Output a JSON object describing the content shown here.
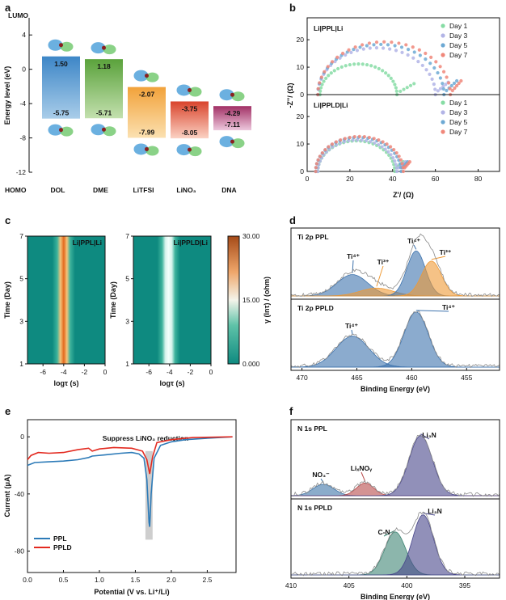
{
  "colors": {
    "day1": "#86dca4",
    "day3": "#b2b4e6",
    "day5": "#6da9d4",
    "day7": "#f0877a",
    "ppl": "#2d7bb8",
    "ppld": "#e32a20",
    "ti4": "#3e73ad",
    "ti3": "#ef9a36",
    "no3": "#3e74a8",
    "lixnoy": "#b84b4b",
    "cn": "#3f8574",
    "li3n": "#48468b",
    "heat_low": "#0e8a80",
    "heat_high": "#e46a1e"
  },
  "chart_data": [
    {
      "panel": "a",
      "type": "bar",
      "title": "LUMO",
      "bottom_label": "HOMO",
      "ylabel": "Energy level (eV)",
      "ylim": [
        -12,
        6
      ],
      "yticks": [
        -12,
        -8,
        -4,
        0,
        4
      ],
      "categories": [
        "DOL",
        "DME",
        "LiTFSI",
        "LiNO₃",
        "DNA"
      ],
      "lumo": [
        1.5,
        1.18,
        -2.07,
        -3.75,
        -4.29
      ],
      "homo": [
        -5.75,
        -5.71,
        -7.99,
        -8.05,
        -7.11
      ],
      "lumo_labels": [
        "1.50",
        "1.18",
        "-2.07",
        "-3.75",
        "-4.29"
      ],
      "homo_labels": [
        "-5.75",
        "-5.71",
        "-7.99",
        "-8.05",
        "-7.11"
      ],
      "bar_colors": [
        [
          "#3d86c7",
          "#a9cde9"
        ],
        [
          "#5aa23b",
          "#c3e0ae"
        ],
        [
          "#f2a23a",
          "#fbe1b1"
        ],
        [
          "#d9442c",
          "#fbd2c4"
        ],
        [
          "#a23065",
          "#edc7dc"
        ]
      ]
    },
    {
      "panel": "b",
      "type": "scatter",
      "xlabel": "Z'/ (Ω)",
      "ylabel": "-Z''/ (Ω)",
      "xlim": [
        0,
        90
      ],
      "xticks": [
        0,
        20,
        40,
        60,
        80
      ],
      "ylim": [
        0,
        28
      ],
      "yticks": [
        0,
        10,
        20
      ],
      "legend": [
        "Day 1",
        "Day 3",
        "Day 5",
        "Day 7"
      ],
      "subplots": [
        {
          "label": "Li|PPL|Li",
          "series": [
            {
              "name": "Day 1",
              "r0": 6,
              "r1": 42,
              "tail": [
                [
                  42,
                  0.5
                ],
                [
                  50,
                  4
                ]
              ]
            },
            {
              "name": "Day 3",
              "r0": 5,
              "r1": 60,
              "tail": [
                [
                  60,
                  0.6
                ],
                [
                  66,
                  4.5
                ]
              ]
            },
            {
              "name": "Day 5",
              "r0": 5,
              "r1": 64,
              "tail": [
                [
                  64,
                  0.6
                ],
                [
                  70,
                  5
                ]
              ]
            },
            {
              "name": "Day 7",
              "r0": 5,
              "r1": 67,
              "tail": [
                [
                  67,
                  0.6
                ],
                [
                  72,
                  5
                ]
              ]
            }
          ]
        },
        {
          "label": "Li|PPLD|Li",
          "series": [
            {
              "name": "Day 1",
              "r0": 5,
              "r1": 41,
              "tail": [
                [
                  41,
                  0.8
                ],
                [
                  45,
                  3.5
                ]
              ]
            },
            {
              "name": "Day 3",
              "r0": 5,
              "r1": 42,
              "tail": [
                [
                  42,
                  0.8
                ],
                [
                  46,
                  3.5
                ]
              ]
            },
            {
              "name": "Day 5",
              "r0": 4,
              "r1": 44,
              "tail": [
                [
                  44,
                  0.8
                ],
                [
                  47,
                  3.5
                ]
              ]
            },
            {
              "name": "Day 7",
              "r0": 4,
              "r1": 45,
              "tail": [
                [
                  45,
                  0.8
                ],
                [
                  48,
                  3.5
                ]
              ]
            }
          ]
        }
      ]
    },
    {
      "panel": "c",
      "type": "heatmap",
      "xlabel": "logτ (s)",
      "ylabel": "Time (Day)",
      "xlim": [
        -7.5,
        0
      ],
      "xticks": [
        -6,
        -4,
        -2,
        0
      ],
      "ylim": [
        1,
        7
      ],
      "yticks": [
        1,
        3,
        5,
        7
      ],
      "colorbar_label": "γ (lnτ) / (ohm)",
      "colorbar_ticks": [
        "0.000",
        "15.00",
        "30.00"
      ],
      "maps": [
        {
          "label": "Li|PPL|Li",
          "peak_logtau": -4.0,
          "peak_value": 30
        },
        {
          "label": "Li|PPLD|Li",
          "peak_logtau": -4.1,
          "peak_value": 11
        }
      ]
    },
    {
      "panel": "d",
      "type": "area",
      "xlabel": "Binding Energy (eV)",
      "xlim": [
        471,
        452
      ],
      "xticks": [
        470,
        465,
        460,
        455
      ],
      "spectra": [
        {
          "label": "Ti 2p   PPL",
          "peaks": [
            {
              "name": "Ti⁴⁺",
              "center": 465.4,
              "height": 0.38,
              "width": 1.4,
              "color": "#3e73ad"
            },
            {
              "name": "Ti³⁺",
              "center": 463.2,
              "height": 0.14,
              "width": 1.5,
              "color": "#ef9a36"
            },
            {
              "name": "Ti⁴⁺",
              "center": 459.6,
              "height": 0.8,
              "width": 0.85,
              "color": "#3e73ad"
            },
            {
              "name": "Ti³⁺",
              "center": 458.2,
              "height": 0.62,
              "width": 0.9,
              "color": "#ef9a36"
            }
          ]
        },
        {
          "label": "Ti 2p   PPLD",
          "peaks": [
            {
              "name": "Ti⁴⁺",
              "center": 465.4,
              "height": 0.55,
              "width": 1.5,
              "color": "#3e73ad"
            },
            {
              "name": "Ti⁴⁺",
              "center": 459.6,
              "height": 0.98,
              "width": 1.1,
              "color": "#3e73ad"
            }
          ]
        }
      ]
    },
    {
      "panel": "e",
      "type": "line",
      "title": "Suppress LiNO₃ reduction",
      "xlabel": "Potential (V vs. Li⁺/Li)",
      "ylabel": "Current (μA)",
      "xlim": [
        0,
        2.9
      ],
      "xticks": [
        0.0,
        0.5,
        1.0,
        1.5,
        2.0,
        2.5
      ],
      "ylim": [
        -95,
        12
      ],
      "yticks": [
        -80,
        -40,
        0
      ],
      "highlight_x": [
        1.64,
        1.74
      ],
      "series": [
        {
          "name": "PPL",
          "points": [
            [
              0.0,
              -20
            ],
            [
              0.1,
              -18
            ],
            [
              0.3,
              -17.5
            ],
            [
              0.5,
              -17
            ],
            [
              0.7,
              -16
            ],
            [
              0.85,
              -14.5
            ],
            [
              0.9,
              -13.5
            ],
            [
              1.1,
              -12.5
            ],
            [
              1.3,
              -11.5
            ],
            [
              1.45,
              -11
            ],
            [
              1.55,
              -12
            ],
            [
              1.62,
              -15
            ],
            [
              1.66,
              -30
            ],
            [
              1.69,
              -60
            ],
            [
              1.7,
              -63
            ],
            [
              1.72,
              -40
            ],
            [
              1.76,
              -15
            ],
            [
              1.85,
              -6
            ],
            [
              2.0,
              -3.5
            ],
            [
              2.2,
              -2
            ],
            [
              2.5,
              -1
            ],
            [
              2.85,
              0
            ]
          ]
        },
        {
          "name": "PPLD",
          "points": [
            [
              0.0,
              -16
            ],
            [
              0.05,
              -13
            ],
            [
              0.15,
              -11
            ],
            [
              0.3,
              -11.5
            ],
            [
              0.5,
              -11
            ],
            [
              0.7,
              -9
            ],
            [
              0.85,
              -8
            ],
            [
              0.9,
              -10
            ],
            [
              1.0,
              -8.5
            ],
            [
              1.2,
              -7.5
            ],
            [
              1.45,
              -8
            ],
            [
              1.6,
              -10
            ],
            [
              1.66,
              -16
            ],
            [
              1.7,
              -26
            ],
            [
              1.74,
              -14
            ],
            [
              1.8,
              -4
            ],
            [
              2.0,
              -2
            ],
            [
              2.3,
              -0.5
            ],
            [
              2.85,
              0
            ]
          ]
        }
      ]
    },
    {
      "panel": "f",
      "type": "area",
      "xlabel": "Binding Energy (eV)",
      "xlim": [
        410,
        392
      ],
      "xticks": [
        410,
        405,
        400,
        395
      ],
      "spectra": [
        {
          "label": "N 1s   PPL",
          "peaks": [
            {
              "name": "NO₃⁻",
              "center": 407.2,
              "height": 0.18,
              "width": 0.9,
              "color": "#3e74a8"
            },
            {
              "name": "LiₓNOᵧ",
              "center": 403.6,
              "height": 0.2,
              "width": 0.75,
              "color": "#b84b4b"
            },
            {
              "name": "Li₃N",
              "center": 398.8,
              "height": 0.95,
              "width": 1.0,
              "color": "#48468b"
            }
          ]
        },
        {
          "label": "N 1s   PPLD",
          "peaks": [
            {
              "name": "C-N",
              "center": 401.0,
              "height": 0.68,
              "width": 0.9,
              "color": "#3f8574"
            },
            {
              "name": "Li₃N",
              "center": 398.6,
              "height": 0.95,
              "width": 0.9,
              "color": "#48468b"
            }
          ]
        }
      ]
    }
  ]
}
